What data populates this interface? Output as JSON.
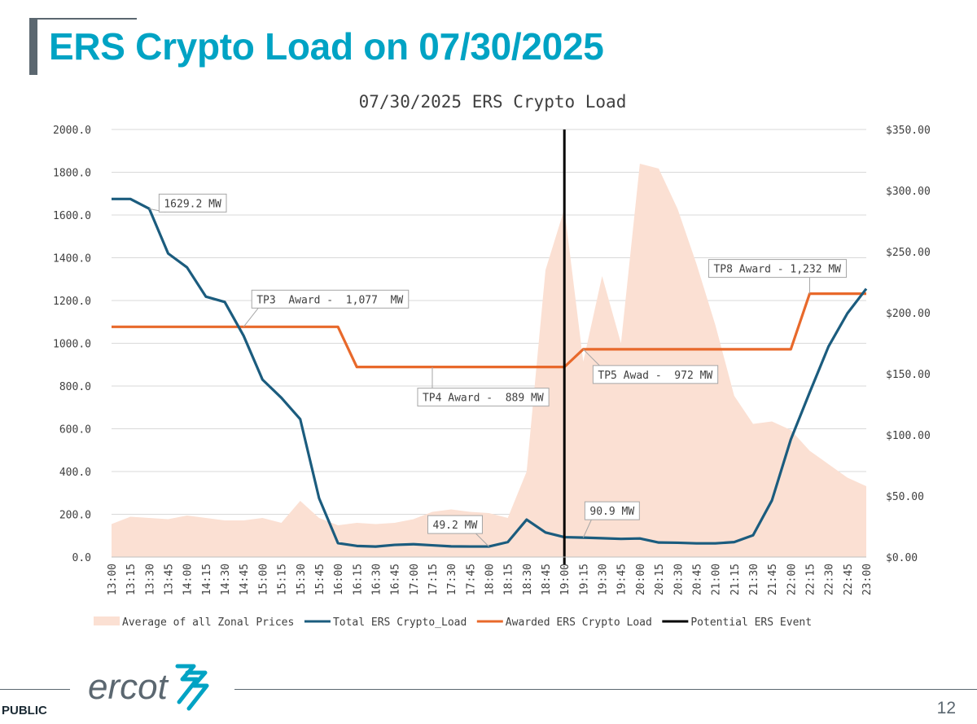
{
  "slide": {
    "title": "ERS Crypto Load on 07/30/2025",
    "public_label": "PUBLIC",
    "page_number": "12",
    "logo_text": "ercot",
    "title_color": "#00a3c4",
    "accent_color": "#5b6770"
  },
  "chart_data": {
    "type": "line",
    "title": "07/30/2025 ERS Crypto Load",
    "categories": [
      "13:00",
      "13:15",
      "13:30",
      "13:45",
      "14:00",
      "14:15",
      "14:30",
      "14:45",
      "15:00",
      "15:15",
      "15:30",
      "15:45",
      "16:00",
      "16:15",
      "16:30",
      "16:45",
      "17:00",
      "17:15",
      "17:30",
      "17:45",
      "18:00",
      "18:15",
      "18:30",
      "18:45",
      "19:00",
      "19:15",
      "19:30",
      "19:45",
      "20:00",
      "20:15",
      "20:30",
      "20:45",
      "21:00",
      "21:15",
      "21:30",
      "21:45",
      "22:00",
      "22:15",
      "22:30",
      "22:45",
      "23:00"
    ],
    "y_left": {
      "min": 0,
      "max": 2000,
      "step": 200,
      "tick_labels": [
        "0.0",
        "200.0",
        "400.0",
        "600.0",
        "800.0",
        "1000.0",
        "1200.0",
        "1400.0",
        "1600.0",
        "1800.0",
        "2000.0"
      ]
    },
    "y_right": {
      "min": 0,
      "max": 350,
      "step": 50,
      "tick_labels": [
        "$0.00",
        "$50.00",
        "$100.00",
        "$150.00",
        "$200.00",
        "$250.00",
        "$300.00",
        "$350.00"
      ]
    },
    "grid": true,
    "legend_position": "bottom",
    "series": [
      {
        "name": "Average of all Zonal Prices",
        "type": "area",
        "axis": "right",
        "color": "#fbe0d3",
        "values": [
          27,
          33,
          32,
          31,
          34,
          32,
          30,
          30,
          32,
          28,
          46,
          32,
          26,
          28,
          27,
          28,
          31,
          37,
          39,
          37,
          36,
          32,
          70,
          235,
          285,
          160,
          230,
          175,
          322,
          318,
          285,
          240,
          190,
          132,
          109,
          111,
          104,
          87,
          76,
          65,
          58
        ]
      },
      {
        "name": "Total ERS Crypto_Load",
        "type": "line",
        "axis": "left",
        "color": "#1b5c7e",
        "values": [
          1675,
          1675,
          1629.2,
          1420,
          1355,
          1218,
          1193,
          1035,
          830,
          745,
          645,
          275,
          65,
          52,
          49,
          57,
          60,
          55,
          50,
          49.2,
          49.2,
          70,
          175,
          115,
          93,
          90.9,
          88,
          85,
          87,
          68,
          67,
          64,
          64,
          70,
          102,
          265,
          550,
          770,
          985,
          1140,
          1255
        ]
      },
      {
        "name": "Awarded ERS Crypto Load",
        "type": "line",
        "axis": "left",
        "color": "#e8692b",
        "values": [
          1077,
          1077,
          1077,
          1077,
          1077,
          1077,
          1077,
          1077,
          1077,
          1077,
          1077,
          1077,
          1077,
          889,
          889,
          889,
          889,
          889,
          889,
          889,
          889,
          889,
          889,
          889,
          889,
          972,
          972,
          972,
          972,
          972,
          972,
          972,
          972,
          972,
          972,
          972,
          972,
          1232,
          1232,
          1232,
          1232
        ]
      },
      {
        "name": "Potential ERS Event",
        "type": "vertical-line",
        "color": "#000000",
        "x": "19:00"
      }
    ],
    "annotations": [
      {
        "text": "1629.2 MW",
        "x": "13:30",
        "y": 1629.2
      },
      {
        "text": "TP3  Award -  1,077  MW",
        "x": "14:45",
        "y": 1077
      },
      {
        "text": "TP4 Award -  889 MW",
        "x": "17:15",
        "y": 889
      },
      {
        "text": "TP5 Awad -  972 MW",
        "x": "19:15",
        "y": 972
      },
      {
        "text": "TP8 Award - 1,232 MW",
        "x": "22:15",
        "y": 1232
      },
      {
        "text": "49.2 MW",
        "x": "18:00",
        "y": 49.2
      },
      {
        "text": "90.9 MW",
        "x": "19:15",
        "y": 90.9
      }
    ]
  }
}
